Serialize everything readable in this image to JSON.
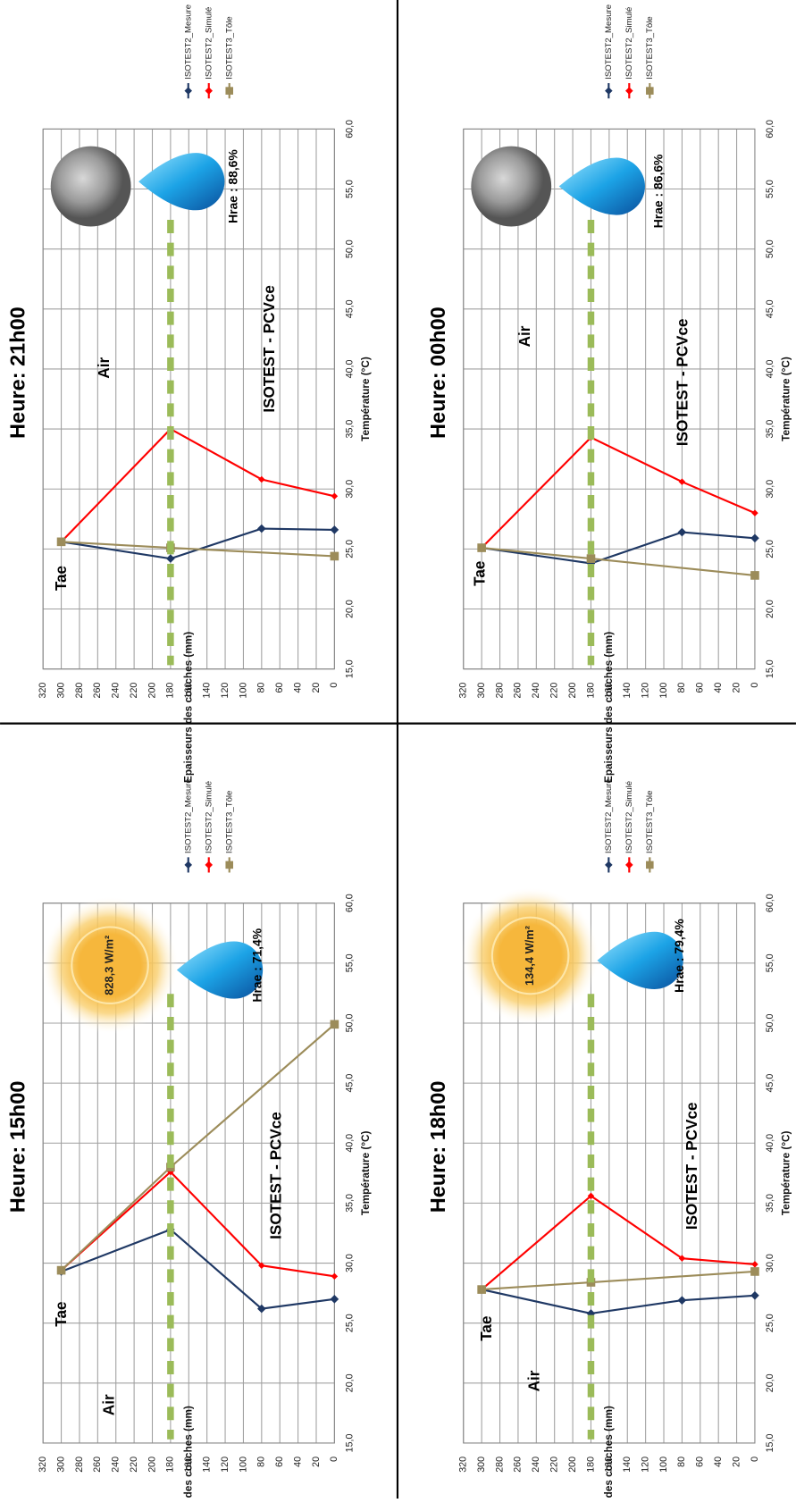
{
  "chart_data": [
    {
      "type": "line",
      "title": "Heure: 21h00",
      "xlabel": "Epaisseurs des couches (mm)",
      "ylabel": "Température (°C)",
      "xlim": [
        0,
        320
      ],
      "xticks": [
        0,
        20,
        40,
        60,
        80,
        100,
        120,
        140,
        160,
        180,
        200,
        220,
        240,
        260,
        280,
        300,
        320
      ],
      "ylim": [
        15,
        60
      ],
      "yticks": [
        {
          "value": 15,
          "label": "15,0"
        },
        {
          "value": 20,
          "label": "20,0"
        },
        {
          "value": 25,
          "label": "25,0"
        },
        {
          "value": 30,
          "label": "30,0"
        },
        {
          "value": 35,
          "label": "35,0"
        },
        {
          "value": 40,
          "label": "40,0"
        },
        {
          "value": 45,
          "label": "45,0"
        },
        {
          "value": 50,
          "label": "50,0"
        },
        {
          "value": 55,
          "label": "55,0"
        },
        {
          "value": 60,
          "label": "60,0"
        }
      ],
      "grid": true,
      "series": [
        {
          "name": "ISOTEST2_Mesure",
          "color": "#1f3864",
          "marker": "diamond",
          "x": [
            300,
            180,
            80,
            0
          ],
          "values": [
            25.6,
            24.2,
            26.7,
            26.6
          ]
        },
        {
          "name": "ISOTEST2_Simulé",
          "color": "#ff0000",
          "marker": "diamond",
          "x": [
            300,
            180,
            80,
            0
          ],
          "values": [
            25.6,
            35.0,
            30.8,
            29.4
          ]
        },
        {
          "name": "ISOTEST3_Tôle",
          "color": "#9c8c5a",
          "marker": "square",
          "x": [
            300,
            180,
            0
          ],
          "values": [
            25.6,
            25.1,
            24.4
          ]
        }
      ],
      "annotations": {
        "tae": "Tae",
        "air": "Air",
        "material": "ISOTEST - PCVce",
        "humidity": "Hrae : 88,6%"
      }
    },
    {
      "type": "line",
      "title": "Heure: 00h00",
      "xlabel": "Epaisseurs des couches (mm)",
      "ylabel": "Température (°C)",
      "xlim": [
        0,
        320
      ],
      "xticks": [
        0,
        20,
        40,
        60,
        80,
        100,
        120,
        140,
        160,
        180,
        200,
        220,
        240,
        260,
        280,
        300,
        320
      ],
      "ylim": [
        15,
        60
      ],
      "yticks": [
        {
          "value": 15,
          "label": "15,0"
        },
        {
          "value": 20,
          "label": "20,0"
        },
        {
          "value": 25,
          "label": "25,0"
        },
        {
          "value": 30,
          "label": "30,0"
        },
        {
          "value": 35,
          "label": "35,0"
        },
        {
          "value": 40,
          "label": "40,0"
        },
        {
          "value": 45,
          "label": "45,0"
        },
        {
          "value": 50,
          "label": "50,0"
        },
        {
          "value": 55,
          "label": "55,0"
        },
        {
          "value": 60,
          "label": "60,0"
        }
      ],
      "grid": true,
      "series": [
        {
          "name": "ISOTEST2_Mesure",
          "color": "#1f3864",
          "marker": "diamond",
          "x": [
            300,
            180,
            80,
            0
          ],
          "values": [
            25.1,
            23.8,
            26.4,
            25.9
          ]
        },
        {
          "name": "ISOTEST2_Simulé",
          "color": "#ff0000",
          "marker": "diamond",
          "x": [
            300,
            180,
            80,
            0
          ],
          "values": [
            25.1,
            34.3,
            30.6,
            28.0
          ]
        },
        {
          "name": "ISOTEST3_Tôle",
          "color": "#9c8c5a",
          "marker": "square",
          "x": [
            300,
            180,
            0
          ],
          "values": [
            25.1,
            24.2,
            22.8
          ]
        }
      ],
      "annotations": {
        "tae": "Tae",
        "air": "Air",
        "material": "ISOTEST - PCVce",
        "humidity": "Hrae : 86,6%"
      }
    },
    {
      "type": "line",
      "title": "Heure: 15h00",
      "xlabel": "Epaisseurs des couches (mm)",
      "ylabel": "Température (°C)",
      "xlim": [
        0,
        320
      ],
      "xticks": [
        0,
        20,
        40,
        60,
        80,
        100,
        120,
        140,
        160,
        180,
        200,
        220,
        240,
        260,
        280,
        300,
        320
      ],
      "ylim": [
        15,
        60
      ],
      "yticks": [
        {
          "value": 15,
          "label": "15,0"
        },
        {
          "value": 20,
          "label": "20,0"
        },
        {
          "value": 25,
          "label": "25,0"
        },
        {
          "value": 30,
          "label": "30,0"
        },
        {
          "value": 35,
          "label": "35,0"
        },
        {
          "value": 40,
          "label": "40,0"
        },
        {
          "value": 45,
          "label": "45,0"
        },
        {
          "value": 50,
          "label": "50,0"
        },
        {
          "value": 55,
          "label": "55,0"
        },
        {
          "value": 60,
          "label": "60,0"
        }
      ],
      "grid": true,
      "series": [
        {
          "name": "ISOTEST2_Mesure",
          "color": "#1f3864",
          "marker": "diamond",
          "x": [
            300,
            180,
            80,
            0
          ],
          "values": [
            29.3,
            32.8,
            26.2,
            27.0
          ]
        },
        {
          "name": "ISOTEST2_Simulé",
          "color": "#ff0000",
          "marker": "diamond",
          "x": [
            300,
            180,
            80,
            0
          ],
          "values": [
            29.4,
            37.6,
            29.8,
            28.9
          ]
        },
        {
          "name": "ISOTEST3_Tôle",
          "color": "#9c8c5a",
          "marker": "square",
          "x": [
            300,
            180,
            0
          ],
          "values": [
            29.4,
            38.0,
            49.9
          ]
        }
      ],
      "annotations": {
        "tae": "Tae",
        "air": "Air",
        "material": "ISOTEST - PCVce",
        "humidity": "Hrae : 71,4%",
        "irradiance": "828,3 W/m²"
      }
    },
    {
      "type": "line",
      "title": "Heure: 18h00",
      "xlabel": "Epaisseurs des couches (mm)",
      "ylabel": "Température (°C)",
      "xlim": [
        0,
        320
      ],
      "xticks": [
        0,
        20,
        40,
        60,
        80,
        100,
        120,
        140,
        160,
        180,
        200,
        220,
        240,
        260,
        280,
        300,
        320
      ],
      "ylim": [
        15,
        60
      ],
      "yticks": [
        {
          "value": 15,
          "label": "15,0"
        },
        {
          "value": 20,
          "label": "20,0"
        },
        {
          "value": 25,
          "label": "25,0"
        },
        {
          "value": 30,
          "label": "30,0"
        },
        {
          "value": 35,
          "label": "35,0"
        },
        {
          "value": 40,
          "label": "40,0"
        },
        {
          "value": 45,
          "label": "45,0"
        },
        {
          "value": 50,
          "label": "50,0"
        },
        {
          "value": 55,
          "label": "55,0"
        },
        {
          "value": 60,
          "label": "60,0"
        }
      ],
      "grid": true,
      "series": [
        {
          "name": "ISOTEST2_Mesure",
          "color": "#1f3864",
          "marker": "diamond",
          "x": [
            300,
            180,
            80,
            0
          ],
          "values": [
            27.8,
            25.8,
            26.9,
            27.3
          ]
        },
        {
          "name": "ISOTEST2_Simulé",
          "color": "#ff0000",
          "marker": "diamond",
          "x": [
            300,
            180,
            80,
            0
          ],
          "values": [
            27.8,
            35.6,
            30.4,
            29.9
          ]
        },
        {
          "name": "ISOTEST3_Tôle",
          "color": "#9c8c5a",
          "marker": "square",
          "x": [
            300,
            180,
            0
          ],
          "values": [
            27.8,
            28.4,
            29.3
          ]
        }
      ],
      "annotations": {
        "tae": "Tae",
        "air": "Air",
        "material": "ISOTEST - PCVce",
        "humidity": "Hrae : 79,4%",
        "irradiance": "134,4 W/m²"
      }
    }
  ]
}
